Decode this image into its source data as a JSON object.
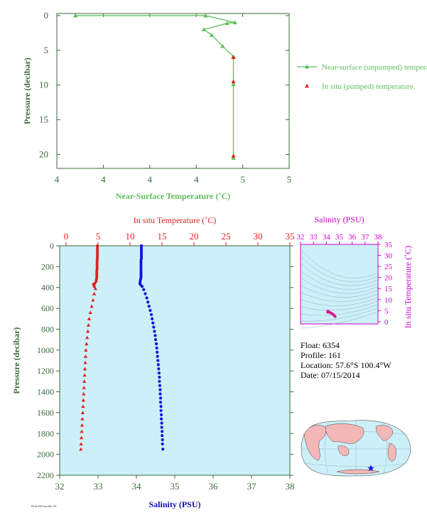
{
  "float_info": {
    "float": "Float:  6354",
    "profile": "Profile:  161",
    "location": "Location:  57.6°S  100.4°W",
    "date": "Date:  07/15/2014"
  },
  "footer_text": "Float 6354 profile 161",
  "colors": {
    "green": "#5fbf5f",
    "axis_green": "#3a6a3a",
    "red": "#e0201e",
    "blue": "#1010dd",
    "magenta": "#cc00cc",
    "panel_bg": "#cdeff8",
    "land": "#f3b7b7",
    "ocean": "#cdeff8"
  },
  "chart_data": [
    {
      "id": "near-surface",
      "type": "line",
      "xlabel": "Near-Surface Temperature (˚C)",
      "ylabel": "Pressure (decibar)",
      "xlim": [
        3.5,
        5.0
      ],
      "ylim": [
        22,
        -0.3
      ],
      "x_ticks": [
        {
          "v": 3.5,
          "label": "4"
        },
        {
          "v": 3.8,
          "label": "4"
        },
        {
          "v": 4.1,
          "label": "4"
        },
        {
          "v": 4.4,
          "label": "4"
        },
        {
          "v": 4.7,
          "label": "5"
        },
        {
          "v": 5.0,
          "label": "5"
        }
      ],
      "y_ticks": [
        0,
        5,
        10,
        15,
        20
      ],
      "series": [
        {
          "name": "Near-surface (unpumped) temperature.",
          "marker": "triangle",
          "points": [
            [
              3.62,
              0.0
            ],
            [
              4.46,
              0.0
            ],
            [
              4.65,
              1.0
            ],
            [
              4.6,
              1.1
            ],
            [
              4.45,
              2.0
            ],
            [
              4.5,
              2.8
            ],
            [
              4.57,
              4.4
            ],
            [
              4.64,
              5.9
            ],
            [
              4.64,
              9.9
            ],
            [
              4.64,
              20.5
            ]
          ]
        },
        {
          "name": "In situ (pumped) temperature.",
          "marker": "triangle",
          "points": [
            [
              4.64,
              6.0
            ],
            [
              4.64,
              9.5
            ],
            [
              4.64,
              20.2
            ]
          ]
        }
      ]
    },
    {
      "id": "profile",
      "type": "scatter",
      "top_xlabel": "In situ Temperature (˚C)",
      "bottom_xlabel": "Salinity (PSU)",
      "ylabel": "Pressure (decibar)",
      "temp_lim": [
        -1,
        35
      ],
      "temp_ticks": [
        0,
        5,
        10,
        15,
        20,
        25,
        30,
        35
      ],
      "sal_lim": [
        32,
        38
      ],
      "sal_ticks": [
        32,
        33,
        34,
        35,
        36,
        37,
        38
      ],
      "ylim": [
        2200,
        0
      ],
      "y_ticks": [
        0,
        200,
        400,
        600,
        800,
        1000,
        1200,
        1400,
        1600,
        1800,
        2000,
        2200
      ],
      "temperature_series": {
        "name": "In situ temperature",
        "points": [
          [
            4.9,
            0
          ],
          [
            4.9,
            20
          ],
          [
            4.9,
            40
          ],
          [
            4.9,
            60
          ],
          [
            4.9,
            80
          ],
          [
            4.9,
            100
          ],
          [
            4.9,
            120
          ],
          [
            4.85,
            140
          ],
          [
            4.85,
            160
          ],
          [
            4.85,
            180
          ],
          [
            4.85,
            200
          ],
          [
            4.85,
            220
          ],
          [
            4.8,
            240
          ],
          [
            4.8,
            260
          ],
          [
            4.8,
            280
          ],
          [
            4.8,
            300
          ],
          [
            4.75,
            320
          ],
          [
            4.7,
            340
          ],
          [
            4.5,
            360
          ],
          [
            4.3,
            370
          ],
          [
            4.4,
            390
          ],
          [
            4.6,
            410
          ],
          [
            4.4,
            460
          ],
          [
            4.2,
            520
          ],
          [
            4.0,
            580
          ],
          [
            3.8,
            640
          ],
          [
            3.6,
            700
          ],
          [
            3.5,
            760
          ],
          [
            3.4,
            820
          ],
          [
            3.3,
            880
          ],
          [
            3.2,
            940
          ],
          [
            3.1,
            1000
          ],
          [
            3.05,
            1060
          ],
          [
            3.0,
            1120
          ],
          [
            2.95,
            1180
          ],
          [
            2.9,
            1240
          ],
          [
            2.85,
            1300
          ],
          [
            2.8,
            1360
          ],
          [
            2.75,
            1420
          ],
          [
            2.7,
            1480
          ],
          [
            2.65,
            1540
          ],
          [
            2.6,
            1600
          ],
          [
            2.55,
            1660
          ],
          [
            2.5,
            1720
          ],
          [
            2.45,
            1780
          ],
          [
            2.4,
            1840
          ],
          [
            2.35,
            1900
          ],
          [
            2.3,
            1950
          ]
        ]
      },
      "salinity_series": {
        "name": "Salinity",
        "points": [
          [
            34.13,
            0
          ],
          [
            34.13,
            20
          ],
          [
            34.13,
            40
          ],
          [
            34.13,
            60
          ],
          [
            34.13,
            80
          ],
          [
            34.13,
            100
          ],
          [
            34.13,
            120
          ],
          [
            34.12,
            140
          ],
          [
            34.12,
            160
          ],
          [
            34.12,
            180
          ],
          [
            34.12,
            200
          ],
          [
            34.12,
            220
          ],
          [
            34.12,
            240
          ],
          [
            34.12,
            260
          ],
          [
            34.12,
            280
          ],
          [
            34.12,
            300
          ],
          [
            34.11,
            320
          ],
          [
            34.1,
            340
          ],
          [
            34.09,
            360
          ],
          [
            34.11,
            375
          ],
          [
            34.15,
            390
          ],
          [
            34.19,
            420
          ],
          [
            34.23,
            460
          ],
          [
            34.27,
            500
          ],
          [
            34.3,
            540
          ],
          [
            34.33,
            580
          ],
          [
            34.36,
            620
          ],
          [
            34.39,
            660
          ],
          [
            34.41,
            700
          ],
          [
            34.43,
            740
          ],
          [
            34.45,
            780
          ],
          [
            34.47,
            820
          ],
          [
            34.49,
            860
          ],
          [
            34.5,
            900
          ],
          [
            34.52,
            940
          ],
          [
            34.53,
            980
          ],
          [
            34.54,
            1020
          ],
          [
            34.55,
            1060
          ],
          [
            34.56,
            1100
          ],
          [
            34.57,
            1140
          ],
          [
            34.58,
            1180
          ],
          [
            34.59,
            1220
          ],
          [
            34.6,
            1260
          ],
          [
            34.6,
            1300
          ],
          [
            34.61,
            1340
          ],
          [
            34.62,
            1380
          ],
          [
            34.62,
            1420
          ],
          [
            34.63,
            1460
          ],
          [
            34.63,
            1500
          ],
          [
            34.64,
            1540
          ],
          [
            34.64,
            1580
          ],
          [
            34.65,
            1620
          ],
          [
            34.65,
            1660
          ],
          [
            34.66,
            1700
          ],
          [
            34.66,
            1740
          ],
          [
            34.67,
            1780
          ],
          [
            34.67,
            1820
          ],
          [
            34.68,
            1860
          ],
          [
            34.68,
            1900
          ],
          [
            34.69,
            1950
          ]
        ]
      }
    },
    {
      "id": "ts-diagram",
      "type": "scatter",
      "top_xlabel": "Salinity (PSU)",
      "right_ylabel": "In situ Temperature (˚C)",
      "sal_lim": [
        32,
        38
      ],
      "sal_ticks": [
        32,
        33,
        34,
        35,
        36,
        37,
        38
      ],
      "temp_lim": [
        -1,
        35
      ],
      "temp_ticks": [
        0,
        5,
        10,
        15,
        20,
        25,
        30,
        35
      ],
      "points": [
        [
          34.13,
          4.9
        ],
        [
          34.12,
          4.8
        ],
        [
          34.1,
          4.6
        ],
        [
          34.1,
          4.3
        ],
        [
          34.15,
          4.5
        ],
        [
          34.2,
          4.4
        ],
        [
          34.27,
          4.2
        ],
        [
          34.33,
          4.0
        ],
        [
          34.39,
          3.8
        ],
        [
          34.45,
          3.6
        ],
        [
          34.5,
          3.4
        ],
        [
          34.55,
          3.2
        ],
        [
          34.58,
          3.0
        ],
        [
          34.61,
          2.85
        ],
        [
          34.63,
          2.7
        ],
        [
          34.65,
          2.6
        ],
        [
          34.67,
          2.45
        ],
        [
          34.69,
          2.3
        ]
      ]
    }
  ]
}
